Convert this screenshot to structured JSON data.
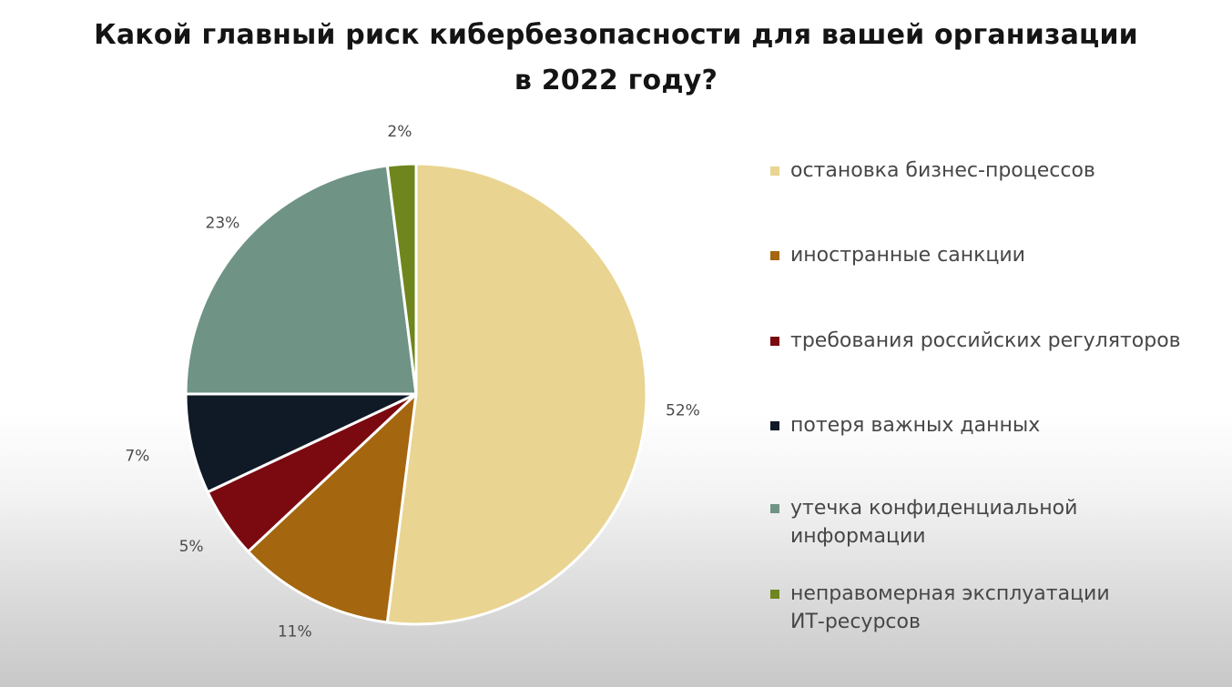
{
  "title_lines": [
    "Какой главный риск кибербезопасности для вашей организации",
    "в 2022 году?"
  ],
  "chart_data": {
    "type": "pie",
    "title": "Какой главный риск кибербезопасности для вашей организации в 2022 году?",
    "start_angle_deg": 0,
    "direction": "clockwise",
    "legend_position": "right",
    "slices": [
      {
        "label_lines": [
          "остановка бизнес-процессов"
        ],
        "value": 52,
        "data_label": "52%",
        "color": "#E9D491"
      },
      {
        "label_lines": [
          "иностранные санкции"
        ],
        "value": 11,
        "data_label": "11%",
        "color": "#A4660E"
      },
      {
        "label_lines": [
          "требования российских регуляторов"
        ],
        "value": 5,
        "data_label": "5%",
        "color": "#7A0A10"
      },
      {
        "label_lines": [
          "потеря важных данных"
        ],
        "value": 7,
        "data_label": "7%",
        "color": "#101A26"
      },
      {
        "label_lines": [
          "утечка конфиденциальной",
          "информации"
        ],
        "value": 23,
        "data_label": "23%",
        "color": "#6F9385"
      },
      {
        "label_lines": [
          "неправомерная эксплуатации",
          "ИТ-ресурсов"
        ],
        "value": 2,
        "data_label": "2%",
        "color": "#6E861D"
      }
    ]
  }
}
